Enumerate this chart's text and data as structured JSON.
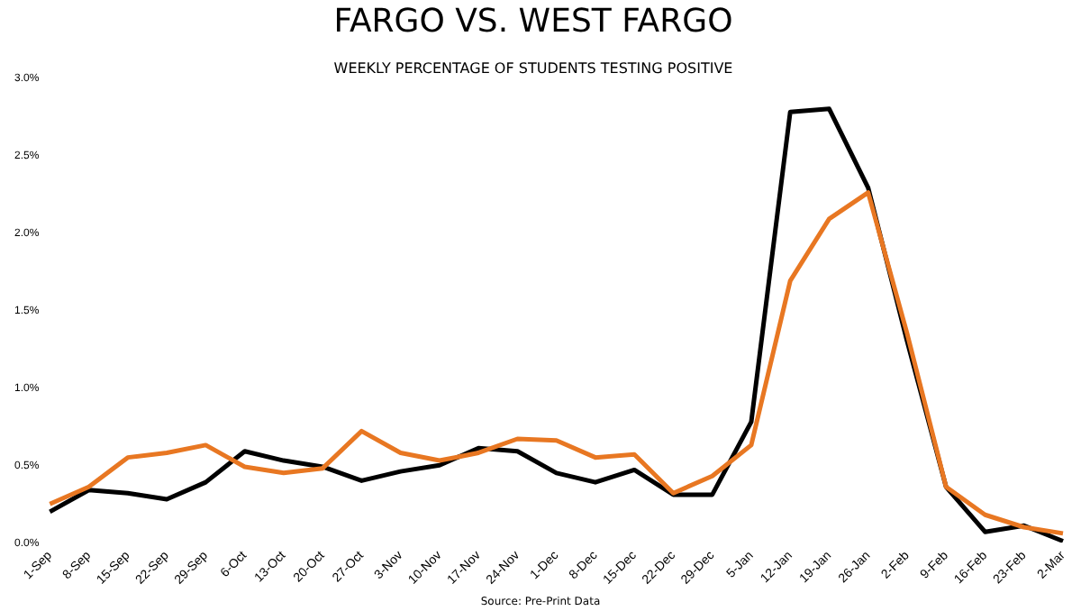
{
  "chart_data": {
    "type": "line",
    "title": "FARGO VS. WEST FARGO",
    "subtitle": "WEEKLY PERCENTAGE OF STUDENTS TESTING POSITIVE",
    "annotations": [
      "Source: Pre-Print Data"
    ],
    "categories": [
      "1-Sep",
      "8-Sep",
      "15-Sep",
      "22-Sep",
      "29-Sep",
      "6-Oct",
      "13-Oct",
      "20-Oct",
      "27-Oct",
      "3-Nov",
      "10-Nov",
      "17-Nov",
      "24-Nov",
      "1-Dec",
      "8-Dec",
      "15-Dec",
      "22-Dec",
      "29-Dec",
      "5-Jan",
      "12-Jan",
      "19-Jan",
      "26-Jan",
      "2-Feb",
      "9-Feb",
      "16-Feb",
      "23-Feb",
      "2-Mar"
    ],
    "series": [
      {
        "color": "#e87722",
        "values": [
          0.25,
          0.36,
          0.55,
          0.58,
          0.63,
          0.49,
          0.45,
          0.48,
          0.72,
          0.58,
          0.53,
          0.58,
          0.67,
          0.66,
          0.55,
          0.57,
          0.32,
          0.43,
          0.63,
          1.69,
          2.09,
          2.26,
          1.35,
          0.36,
          0.18,
          0.1,
          0.06
        ]
      },
      {
        "color": "#000000",
        "values": [
          0.2,
          0.34,
          0.32,
          0.28,
          0.39,
          0.59,
          0.53,
          0.49,
          0.4,
          0.46,
          0.5,
          0.61,
          0.59,
          0.45,
          0.39,
          0.47,
          0.31,
          0.31,
          0.78,
          2.78,
          2.8,
          2.29,
          1.3,
          0.36,
          0.07,
          0.11,
          0.01
        ]
      }
    ],
    "ylim": [
      0,
      3
    ],
    "yticks": [
      {
        "value": 0,
        "label": "0.0%"
      },
      {
        "value": 0.5,
        "label": "0.5%"
      },
      {
        "value": 1,
        "label": "1.0%"
      },
      {
        "value": 1.5,
        "label": "1.5%"
      },
      {
        "value": 2,
        "label": "2.0%"
      },
      {
        "value": 2.5,
        "label": "2.5%"
      },
      {
        "value": 3,
        "label": "3.0%"
      }
    ],
    "grid": false,
    "legend": false,
    "marker": "none",
    "line_style": "solid"
  }
}
